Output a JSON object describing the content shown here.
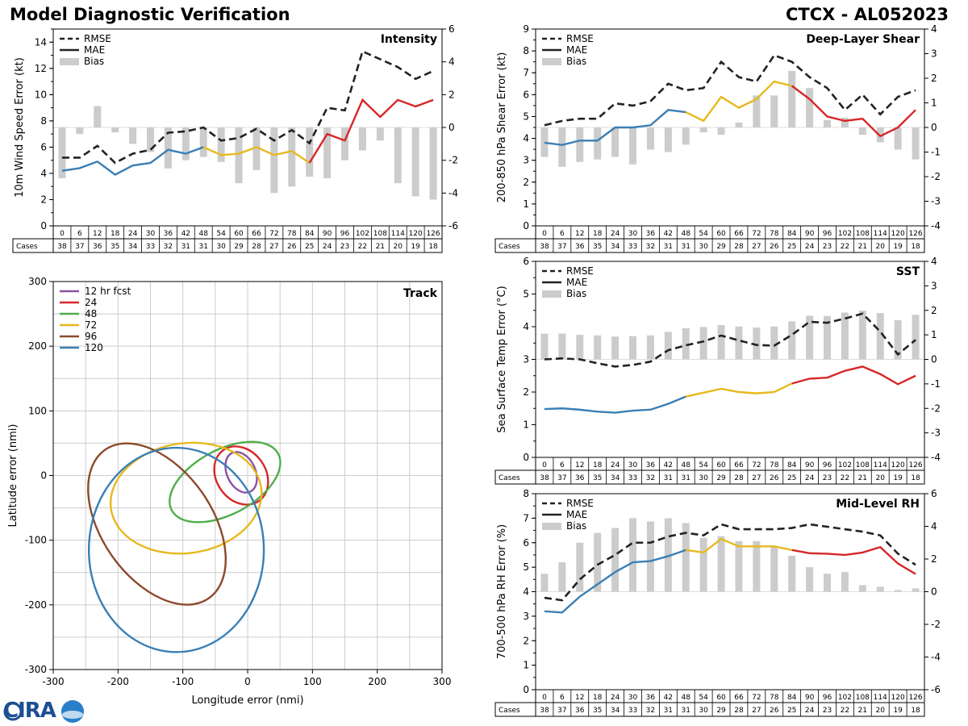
{
  "title": "Model Diagnostic Verification",
  "storm_id": "CTCX - AL052023",
  "logo_text": "CIRA",
  "cases_label": "Cases",
  "forecast_hours": [
    0,
    6,
    12,
    18,
    24,
    30,
    36,
    42,
    48,
    54,
    60,
    66,
    72,
    78,
    84,
    90,
    96,
    102,
    108,
    114,
    120,
    126
  ],
  "cases": [
    38,
    37,
    36,
    35,
    34,
    33,
    32,
    31,
    31,
    30,
    29,
    28,
    27,
    26,
    25,
    24,
    23,
    22,
    21,
    20,
    19,
    18
  ],
  "colors": {
    "rmse": "#222222",
    "mae_early": "#3a7fb5",
    "mae_mid": "#e6b91e",
    "mae_late": "#d62728",
    "bias": "#cccccc",
    "grid": "#cccccc"
  },
  "chart_data": [
    {
      "type": "line",
      "id": "intensity",
      "title": "Intensity",
      "xlabel": "",
      "ylabel": "10m Wind Speed Error (kt)",
      "ylim": [
        0,
        15
      ],
      "yticks": [
        0,
        2,
        4,
        6,
        8,
        10,
        12,
        14
      ],
      "y2lim": [
        -6,
        6
      ],
      "y2ticks": [
        -6,
        -4,
        -2,
        0,
        2,
        4,
        6
      ],
      "legend": [
        "RMSE",
        "MAE",
        "Bias"
      ],
      "legend_position": "top-left",
      "series": [
        {
          "name": "RMSE",
          "values": [
            5.2,
            5.2,
            6.1,
            4.8,
            5.5,
            5.8,
            7.1,
            7.2,
            7.5,
            6.5,
            6.7,
            7.4,
            6.5,
            7.3,
            6.3,
            9.0,
            8.8,
            13.3,
            12.7,
            12.1,
            11.2,
            11.8
          ]
        },
        {
          "name": "MAE",
          "values": [
            4.2,
            4.4,
            4.9,
            3.9,
            4.6,
            4.8,
            5.8,
            5.5,
            6.0,
            5.4,
            5.5,
            6.0,
            5.4,
            5.7,
            4.8,
            7.0,
            6.5,
            9.6,
            8.3,
            9.6,
            9.1,
            9.6
          ]
        },
        {
          "name": "Bias",
          "values": [
            -3.1,
            -0.4,
            1.3,
            -0.3,
            -1.0,
            -1.5,
            -2.5,
            -2.0,
            -1.8,
            -2.1,
            -3.4,
            -2.6,
            -4.0,
            -3.6,
            -3.0,
            -3.1,
            -2.0,
            -1.4,
            -0.8,
            -3.4,
            -4.2,
            -4.4
          ]
        }
      ]
    },
    {
      "type": "line",
      "id": "shear",
      "title": "Deep-Layer Shear",
      "xlabel": "",
      "ylabel": "200-850 hPa Shear Error (kt)",
      "ylim": [
        0,
        9
      ],
      "yticks": [
        0,
        1,
        2,
        3,
        4,
        5,
        6,
        7,
        8,
        9
      ],
      "y2lim": [
        -4,
        4
      ],
      "y2ticks": [
        -4,
        -3,
        -2,
        -1,
        0,
        1,
        2,
        3,
        4
      ],
      "legend": [
        "RMSE",
        "MAE",
        "Bias"
      ],
      "legend_position": "top-left",
      "series": [
        {
          "name": "RMSE",
          "values": [
            4.6,
            4.8,
            4.9,
            4.9,
            5.6,
            5.5,
            5.7,
            6.5,
            6.2,
            6.3,
            7.5,
            6.8,
            6.6,
            7.8,
            7.5,
            6.8,
            6.3,
            5.3,
            6.0,
            5.1,
            5.9,
            6.2
          ]
        },
        {
          "name": "MAE",
          "values": [
            3.8,
            3.7,
            3.9,
            3.9,
            4.5,
            4.5,
            4.6,
            5.3,
            5.2,
            4.8,
            5.9,
            5.4,
            5.8,
            6.6,
            6.4,
            5.8,
            5.0,
            4.8,
            4.9,
            4.1,
            4.5,
            5.3
          ]
        },
        {
          "name": "Bias",
          "values": [
            -1.2,
            -1.6,
            -1.4,
            -1.3,
            -1.2,
            -1.5,
            -0.9,
            -1.0,
            -0.7,
            -0.2,
            -0.3,
            0.2,
            1.3,
            1.3,
            2.3,
            1.6,
            0.3,
            0.4,
            -0.3,
            -0.6,
            -0.9,
            -1.3
          ]
        }
      ]
    },
    {
      "type": "line",
      "id": "sst",
      "title": "SST",
      "xlabel": "",
      "ylabel": "Sea Surface Temp Error (°C)",
      "ylim": [
        0,
        6
      ],
      "yticks": [
        0,
        1,
        2,
        3,
        4,
        5,
        6
      ],
      "y2lim": [
        -4,
        4
      ],
      "y2ticks": [
        -4,
        -3,
        -2,
        -1,
        0,
        1,
        2,
        3,
        4
      ],
      "legend": [
        "RMSE",
        "MAE",
        "Bias"
      ],
      "legend_position": "top-left",
      "series": [
        {
          "name": "RMSE",
          "values": [
            3.0,
            3.03,
            3.0,
            2.88,
            2.78,
            2.83,
            2.93,
            3.28,
            3.43,
            3.55,
            3.73,
            3.58,
            3.44,
            3.42,
            3.75,
            4.15,
            4.12,
            4.25,
            4.4,
            3.85,
            3.15,
            3.6
          ]
        },
        {
          "name": "MAE",
          "values": [
            1.48,
            1.5,
            1.46,
            1.4,
            1.37,
            1.43,
            1.46,
            1.64,
            1.86,
            1.98,
            2.1,
            2.0,
            1.96,
            2.0,
            2.26,
            2.41,
            2.44,
            2.65,
            2.78,
            2.55,
            2.24,
            2.5
          ]
        },
        {
          "name": "Bias",
          "values": [
            1.05,
            1.05,
            1.0,
            0.98,
            0.93,
            0.95,
            0.98,
            1.12,
            1.27,
            1.32,
            1.4,
            1.34,
            1.3,
            1.34,
            1.55,
            1.78,
            1.77,
            1.91,
            1.99,
            1.89,
            1.6,
            1.82
          ]
        }
      ]
    },
    {
      "type": "line",
      "id": "rh",
      "title": "Mid-Level RH",
      "xlabel": "",
      "ylabel": "700-500 hPa RH Error (%)",
      "ylim": [
        0,
        8
      ],
      "yticks": [
        0,
        1,
        2,
        3,
        4,
        5,
        6,
        7,
        8
      ],
      "y2lim": [
        -6,
        6
      ],
      "y2ticks": [
        -6,
        -4,
        -2,
        0,
        2,
        4,
        6
      ],
      "legend": [
        "RMSE",
        "MAE",
        "Bias"
      ],
      "legend_position": "top-left",
      "series": [
        {
          "name": "RMSE",
          "values": [
            3.75,
            3.65,
            4.5,
            5.1,
            5.5,
            6.0,
            6.0,
            6.25,
            6.4,
            6.3,
            6.75,
            6.55,
            6.55,
            6.55,
            6.6,
            6.75,
            6.65,
            6.55,
            6.45,
            6.3,
            5.55,
            5.1
          ]
        },
        {
          "name": "MAE",
          "values": [
            3.2,
            3.15,
            3.8,
            4.3,
            4.8,
            5.2,
            5.25,
            5.45,
            5.7,
            5.6,
            6.15,
            5.85,
            5.85,
            5.85,
            5.7,
            5.57,
            5.55,
            5.5,
            5.6,
            5.82,
            5.15,
            4.72
          ]
        },
        {
          "name": "Bias",
          "values": [
            1.1,
            1.8,
            3.0,
            3.6,
            3.9,
            4.5,
            4.3,
            4.5,
            4.2,
            3.3,
            3.4,
            3.1,
            3.1,
            2.8,
            2.2,
            1.5,
            1.1,
            1.2,
            0.4,
            0.3,
            0.1,
            0.2
          ]
        }
      ]
    },
    {
      "type": "scatter",
      "id": "track",
      "title": "Track",
      "xlabel": "Longitude error (nmi)",
      "ylabel": "Latitude error (nmi)",
      "xlim": [
        -300,
        300
      ],
      "ylim": [
        -300,
        300
      ],
      "xticks": [
        -300,
        -200,
        -100,
        0,
        100,
        200,
        300
      ],
      "yticks": [
        -300,
        -200,
        -100,
        0,
        100,
        200,
        300
      ],
      "grid": true,
      "legend_position": "top-left",
      "ellipses": [
        {
          "name": "12 hr fcst",
          "color": "#8e4fa3",
          "cx": -10,
          "cy": 5,
          "rx": 22,
          "ry": 33,
          "angle": -25
        },
        {
          "name": "24",
          "color": "#d62728",
          "cx": -10,
          "cy": 0,
          "rx": 38,
          "ry": 48,
          "angle": -35
        },
        {
          "name": "48",
          "color": "#4fae4a",
          "cx": -35,
          "cy": -10,
          "rx": 93,
          "ry": 50,
          "angle": -28
        },
        {
          "name": "72",
          "color": "#e6b91e",
          "cx": -95,
          "cy": -35,
          "rx": 117,
          "ry": 85,
          "angle": -8
        },
        {
          "name": "96",
          "color": "#8b4a2a",
          "cx": -140,
          "cy": -75,
          "rx": 85,
          "ry": 140,
          "angle": -35
        },
        {
          "name": "120",
          "color": "#3a7fb5",
          "cx": -110,
          "cy": -115,
          "rx": 135,
          "ry": 158,
          "angle": 0
        }
      ]
    }
  ]
}
